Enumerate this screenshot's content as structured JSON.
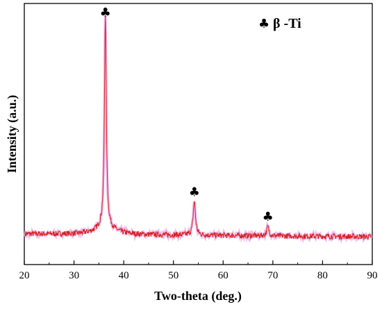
{
  "chart_data": {
    "type": "line",
    "xlabel": "Two-theta (deg.)",
    "ylabel": "Intensity (a.u.)",
    "xlim": [
      20,
      90
    ],
    "x_ticks": [
      "20",
      "30",
      "40",
      "50",
      "60",
      "70",
      "80",
      "90"
    ],
    "y_ticks_shown": false,
    "grid": false,
    "legend": {
      "symbol": "♣",
      "text": "β -Ti",
      "placement": "top-right"
    },
    "baseline_intensity": 0.05,
    "peaks": [
      {
        "two_theta": 36.3,
        "relative_intensity": 1.0,
        "marker": "♣"
      },
      {
        "two_theta": 54.2,
        "relative_intensity": 0.2,
        "marker": "♣"
      },
      {
        "two_theta": 69.0,
        "relative_intensity": 0.09,
        "marker": "♣"
      }
    ],
    "series": [
      {
        "color": "#d81f1f"
      }
    ]
  }
}
